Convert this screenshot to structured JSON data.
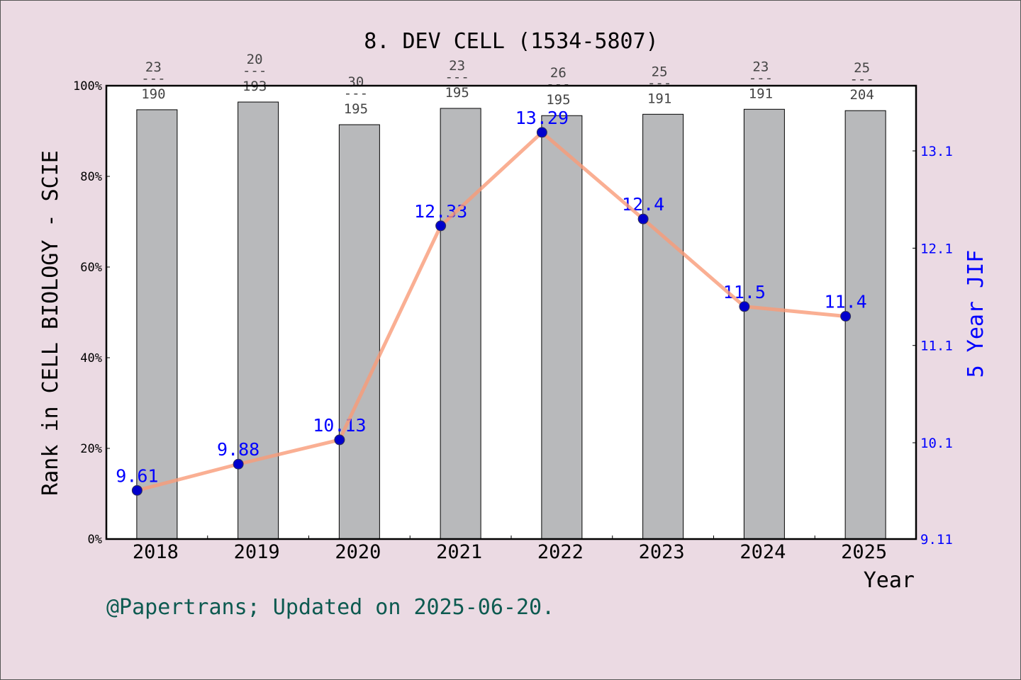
{
  "chart_data": {
    "type": "bar+line",
    "title": "8. DEV CELL (1534-5807)",
    "xlabel": "Year",
    "ylabel_left": "Rank in CELL BIOLOGY - SCIE",
    "ylabel_right": "5 Year JIF",
    "categories": [
      "2018",
      "2019",
      "2020",
      "2021",
      "2022",
      "2023",
      "2024",
      "2025"
    ],
    "bar_values_percent": [
      94.7,
      96.4,
      91.4,
      95.0,
      93.4,
      93.7,
      94.8,
      94.5
    ],
    "rank_labels": [
      {
        "rank": "23",
        "total": "190"
      },
      {
        "rank": "20",
        "total": "193"
      },
      {
        "rank": "30",
        "total": "195"
      },
      {
        "rank": "23",
        "total": "195"
      },
      {
        "rank": "26",
        "total": "195"
      },
      {
        "rank": "25",
        "total": "191"
      },
      {
        "rank": "23",
        "total": "191"
      },
      {
        "rank": "25",
        "total": "204"
      }
    ],
    "rank_separator": "---",
    "line_values": [
      9.61,
      9.88,
      10.13,
      12.33,
      13.29,
      12.4,
      11.5,
      11.4
    ],
    "line_labels": [
      "9.61",
      "9.88",
      "10.13",
      "12.33",
      "13.29",
      "12.4",
      "11.5",
      "11.4"
    ],
    "ylim_left": [
      0,
      100
    ],
    "left_ticks": [
      "0%",
      "20%",
      "40%",
      "60%",
      "80%",
      "100%"
    ],
    "ylim_right": [
      9.11,
      13.77
    ],
    "right_ticks": [
      "9.11",
      "10.1",
      "11.1",
      "12.1",
      "13.1"
    ],
    "colors": {
      "bar": "#b8b9bb",
      "line": "#f99b78",
      "marker": "#0000cc",
      "right_axis": "#0000ff",
      "footer": "#0d5a50"
    }
  },
  "footer": "@Papertrans; Updated on 2025-06-20."
}
